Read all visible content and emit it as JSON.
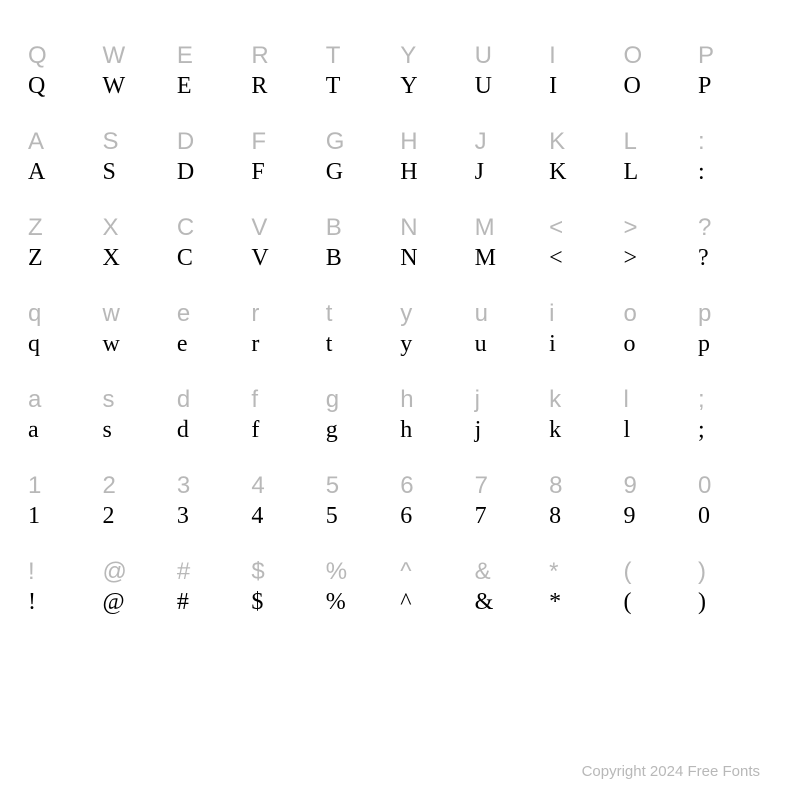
{
  "rows": [
    [
      "Q",
      "W",
      "E",
      "R",
      "T",
      "Y",
      "U",
      "I",
      "O",
      "P"
    ],
    [
      "A",
      "S",
      "D",
      "F",
      "G",
      "H",
      "J",
      "K",
      "L",
      ":"
    ],
    [
      "Z",
      "X",
      "C",
      "V",
      "B",
      "N",
      "M",
      "<",
      ">",
      "?"
    ],
    [
      "q",
      "w",
      "e",
      "r",
      "t",
      "y",
      "u",
      "i",
      "o",
      "p"
    ],
    [
      "a",
      "s",
      "d",
      "f",
      "g",
      "h",
      "j",
      "k",
      "l",
      ";"
    ],
    [
      "1",
      "2",
      "3",
      "4",
      "5",
      "6",
      "7",
      "8",
      "9",
      "0"
    ],
    [
      "!",
      "@",
      "#",
      "$",
      "%",
      "^",
      "&",
      "*",
      "(",
      ")"
    ]
  ],
  "copyright": "Copyright 2024 Free Fonts",
  "colors": {
    "reference": "#b8b8b8",
    "sample": "#000000",
    "background": "#ffffff"
  },
  "font_sample": "Georgia, Times New Roman, serif",
  "font_reference": "Segoe UI, Lucida Sans, Arial, sans-serif",
  "cell_fontsize": 24
}
